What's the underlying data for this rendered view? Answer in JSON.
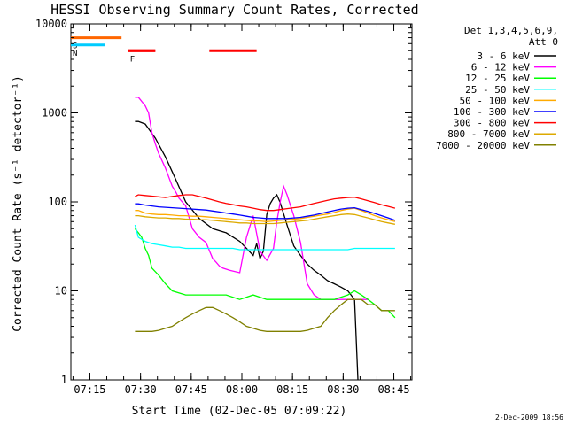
{
  "chart_data": {
    "type": "line",
    "title": "HESSI Observing Summary Count Rates, Corrected",
    "xlabel": "Start Time (02-Dec-05 07:09:22)",
    "ylabel": "Corrected Count Rate (s⁻¹ detector⁻¹)",
    "y_scale": "log",
    "ylim": [
      1,
      10000
    ],
    "xlim": [
      0,
      101
    ],
    "x_units": "minutes after 07:09:22",
    "y_tick_labels": [
      "1",
      "10",
      "100",
      "1000",
      "10000"
    ],
    "y_tick_values": [
      1,
      10,
      100,
      1000,
      10000
    ],
    "x_tick_labels": [
      "07:15",
      "07:30",
      "07:45",
      "08:00",
      "08:15",
      "08:30",
      "08:45"
    ],
    "x_tick_values": [
      5.63,
      20.63,
      35.63,
      50.63,
      65.63,
      80.63,
      95.63
    ],
    "legend_title_lines": [
      "Det 1,3,4,5,6,9,",
      "Att 0"
    ],
    "legend_placement": "right",
    "grid": false,
    "footer": "2-Dec-2009 18:56",
    "series": [
      {
        "name": "3 - 6 keV",
        "color": "#000000",
        "x": [
          19,
          20,
          22,
          25,
          28,
          31,
          34,
          38,
          42,
          46,
          50,
          52,
          54,
          55,
          56,
          57,
          58,
          59,
          60,
          61,
          62,
          64,
          66,
          68,
          70,
          72,
          74,
          76,
          78,
          80,
          82,
          84,
          85
        ],
        "y": [
          800,
          800,
          750,
          520,
          320,
          180,
          100,
          65,
          50,
          45,
          36,
          30,
          25,
          34,
          23,
          28,
          72,
          95,
          110,
          120,
          98,
          55,
          32,
          25,
          20,
          17,
          15,
          13,
          12,
          11,
          10,
          8,
          1
        ]
      },
      {
        "name": "6 - 12 keV",
        "color": "#ff00ff",
        "x": [
          19,
          20,
          22,
          23,
          24,
          25,
          26,
          28,
          30,
          31,
          32,
          34,
          36,
          38,
          40,
          42,
          43,
          44,
          45,
          47,
          50,
          52,
          54,
          56,
          58,
          60,
          61,
          62,
          63,
          64,
          66,
          68,
          70,
          72,
          74,
          76,
          78,
          80,
          82,
          84,
          86,
          88
        ],
        "y": [
          1500,
          1500,
          1200,
          1000,
          600,
          450,
          350,
          240,
          150,
          130,
          110,
          90,
          50,
          40,
          35,
          23,
          21,
          19,
          18,
          17,
          16,
          40,
          70,
          28,
          22,
          30,
          60,
          100,
          150,
          120,
          70,
          35,
          12,
          9,
          8,
          8,
          8,
          8,
          8,
          8,
          8,
          8
        ]
      },
      {
        "name": "12 - 25 keV",
        "color": "#00ff00",
        "x": [
          19,
          20,
          21,
          22,
          23,
          24,
          26,
          28,
          30,
          34,
          38,
          42,
          46,
          50,
          54,
          58,
          62,
          66,
          70,
          74,
          78,
          82,
          84,
          86,
          88,
          90,
          92,
          94,
          96
        ],
        "y": [
          50,
          45,
          40,
          30,
          25,
          18,
          15,
          12,
          10,
          9,
          9,
          9,
          9,
          8,
          9,
          8,
          8,
          8,
          8,
          8,
          8,
          9,
          10,
          9,
          8,
          7,
          6,
          6,
          5
        ]
      },
      {
        "name": "25 - 50 keV",
        "color": "#00ffff",
        "x": [
          19,
          20,
          22,
          24,
          26,
          28,
          30,
          32,
          34,
          36,
          38,
          40,
          42,
          44,
          46,
          48,
          50,
          52,
          54,
          56,
          58,
          60,
          62,
          64,
          66,
          68,
          70,
          72,
          74,
          76,
          78,
          80,
          82,
          84,
          86,
          88,
          90,
          92,
          94,
          96
        ],
        "y": [
          55,
          40,
          36,
          34,
          33,
          32,
          31,
          31,
          30,
          30,
          30,
          30,
          30,
          30,
          30,
          30,
          29,
          29,
          29,
          29,
          29,
          29,
          29,
          29,
          29,
          29,
          29,
          29,
          29,
          29,
          29,
          29,
          29,
          30,
          30,
          30,
          30,
          30,
          30,
          30
        ]
      },
      {
        "name": "50 - 100 keV",
        "color": "#ffaa00",
        "x": [
          19,
          20,
          22,
          24,
          26,
          28,
          30,
          32,
          34,
          36,
          38,
          40,
          42,
          44,
          46,
          48,
          50,
          52,
          54,
          56,
          58,
          60,
          62,
          64,
          66,
          68,
          70,
          72,
          74,
          76,
          78,
          80,
          82,
          84,
          86,
          88,
          90,
          92,
          94,
          96
        ],
        "y": [
          80,
          80,
          75,
          73,
          72,
          72,
          71,
          70,
          70,
          69,
          69,
          68,
          67,
          66,
          65,
          64,
          63,
          62,
          61,
          61,
          60,
          61,
          62,
          63,
          64,
          65,
          67,
          69,
          71,
          73,
          76,
          80,
          83,
          85,
          80,
          75,
          70,
          66,
          63,
          60
        ]
      },
      {
        "name": "100 - 300 keV",
        "color": "#0000ff",
        "x": [
          19,
          20,
          22,
          24,
          26,
          28,
          30,
          32,
          34,
          36,
          38,
          40,
          42,
          44,
          46,
          48,
          50,
          52,
          54,
          56,
          58,
          60,
          62,
          64,
          66,
          68,
          70,
          72,
          74,
          76,
          78,
          80,
          82,
          84,
          86,
          88,
          90,
          92,
          94,
          96
        ],
        "y": [
          95,
          95,
          92,
          90,
          88,
          87,
          86,
          85,
          84,
          83,
          82,
          81,
          79,
          77,
          75,
          73,
          71,
          69,
          67,
          66,
          65,
          65,
          65,
          65,
          66,
          67,
          69,
          71,
          74,
          77,
          80,
          83,
          85,
          86,
          82,
          78,
          74,
          70,
          66,
          62
        ]
      },
      {
        "name": "300 - 800 keV",
        "color": "#ff0000",
        "x": [
          19,
          20,
          22,
          24,
          26,
          28,
          30,
          32,
          34,
          36,
          38,
          40,
          42,
          44,
          46,
          48,
          50,
          52,
          54,
          56,
          58,
          60,
          62,
          64,
          66,
          68,
          70,
          72,
          74,
          76,
          78,
          80,
          82,
          84,
          86,
          88,
          90,
          92,
          94,
          96
        ],
        "y": [
          115,
          120,
          118,
          116,
          114,
          112,
          115,
          118,
          120,
          120,
          115,
          110,
          105,
          100,
          96,
          93,
          90,
          88,
          85,
          82,
          80,
          80,
          82,
          84,
          86,
          88,
          92,
          96,
          100,
          104,
          108,
          110,
          112,
          113,
          108,
          103,
          98,
          93,
          89,
          85
        ]
      },
      {
        "name": "800 - 7000 keV",
        "color": "#ddaa00",
        "x": [
          19,
          20,
          22,
          24,
          26,
          28,
          30,
          32,
          34,
          36,
          38,
          40,
          42,
          44,
          46,
          48,
          50,
          52,
          54,
          56,
          58,
          60,
          62,
          64,
          66,
          68,
          70,
          72,
          74,
          76,
          78,
          80,
          82,
          84,
          86,
          88,
          90,
          92,
          94,
          96
        ],
        "y": [
          70,
          70,
          68,
          67,
          66,
          66,
          65,
          65,
          64,
          64,
          63,
          63,
          62,
          61,
          60,
          59,
          58,
          58,
          57,
          57,
          57,
          57,
          58,
          59,
          60,
          61,
          62,
          64,
          66,
          68,
          70,
          72,
          73,
          72,
          69,
          66,
          63,
          60,
          58,
          56
        ]
      },
      {
        "name": "7000 - 20000 keV",
        "color": "#808000",
        "x": [
          19,
          20,
          22,
          24,
          26,
          28,
          30,
          32,
          34,
          36,
          38,
          40,
          42,
          44,
          46,
          48,
          50,
          52,
          54,
          56,
          58,
          60,
          62,
          64,
          66,
          68,
          70,
          72,
          74,
          76,
          78,
          80,
          82,
          84,
          86,
          88,
          90,
          92,
          94,
          96
        ],
        "y": [
          3.5,
          3.5,
          3.5,
          3.5,
          3.6,
          3.8,
          4,
          4.5,
          5,
          5.5,
          6,
          6.5,
          6.5,
          6,
          5.5,
          5,
          4.5,
          4,
          3.8,
          3.6,
          3.5,
          3.5,
          3.5,
          3.5,
          3.5,
          3.5,
          3.6,
          3.8,
          4,
          5,
          6,
          7,
          8,
          8,
          8,
          7,
          7,
          6,
          6,
          6
        ]
      }
    ],
    "attenuator_markers": [
      {
        "label": "S",
        "color": "#ff6600",
        "x_start": 0,
        "x_end": 15,
        "y": 7000
      },
      {
        "label": "N",
        "color": "#00ccff",
        "x_start": 0,
        "x_end": 10,
        "y": 5800
      },
      {
        "label": "F",
        "color": "#ff0000",
        "x_start": 17,
        "x_end": 25,
        "y": 5000
      }
    ],
    "flare_bars": [
      {
        "color": "#ff0000",
        "x_start": 17,
        "x_end": 25,
        "y": 5000
      },
      {
        "color": "#ff0000",
        "x_start": 41,
        "x_end": 55,
        "y": 5000
      }
    ]
  }
}
